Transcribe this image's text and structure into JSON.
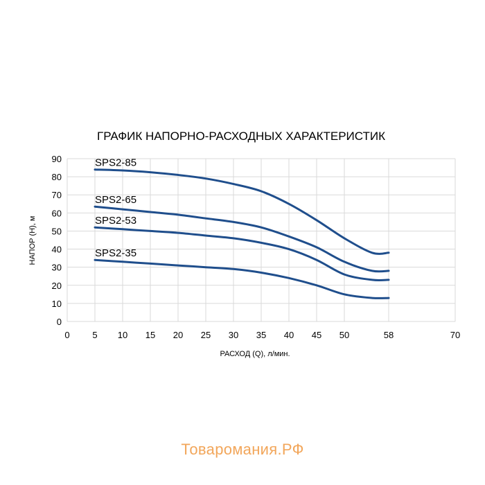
{
  "watermark": "Товаромания.РФ",
  "chart_data": {
    "type": "line",
    "title": "ГРАФИК НАПОРНО-РАСХОДНЫХ ХАРАКТЕРИСТИК",
    "xlabel": "РАСХОД (Q), л/мин.",
    "ylabel": "НАПОР (H), м",
    "xlim": [
      0,
      70
    ],
    "ylim": [
      0,
      90
    ],
    "x_ticks": [
      "0",
      "5",
      "10",
      "15",
      "20",
      "25",
      "30",
      "35",
      "40",
      "45",
      "50",
      "58",
      "70"
    ],
    "y_ticks": [
      "0",
      "10",
      "20",
      "30",
      "40",
      "50",
      "60",
      "70",
      "80",
      "90"
    ],
    "grid": true,
    "line_color": "#1f4e8c",
    "series": [
      {
        "name": "SPS2-85",
        "x": [
          5,
          10,
          15,
          20,
          25,
          30,
          35,
          40,
          45,
          50,
          55,
          58
        ],
        "y": [
          84,
          83.5,
          82.5,
          81,
          79,
          76,
          72,
          65,
          56,
          46,
          38,
          38
        ]
      },
      {
        "name": "SPS2-65",
        "x": [
          5,
          10,
          15,
          20,
          25,
          30,
          35,
          40,
          45,
          50,
          55,
          58
        ],
        "y": [
          63.5,
          62,
          60.5,
          59,
          57,
          55,
          52,
          47,
          41,
          33,
          28,
          28
        ]
      },
      {
        "name": "SPS2-53",
        "x": [
          5,
          10,
          15,
          20,
          25,
          30,
          35,
          40,
          45,
          50,
          55,
          58
        ],
        "y": [
          52,
          51,
          50,
          49,
          47.5,
          46,
          43.5,
          40,
          34,
          26,
          23,
          23
        ]
      },
      {
        "name": "SPS2-35",
        "x": [
          5,
          10,
          15,
          20,
          25,
          30,
          35,
          40,
          45,
          50,
          55,
          58
        ],
        "y": [
          34,
          33,
          32,
          31,
          30,
          29,
          27,
          24,
          20,
          15,
          13,
          13
        ]
      }
    ]
  }
}
